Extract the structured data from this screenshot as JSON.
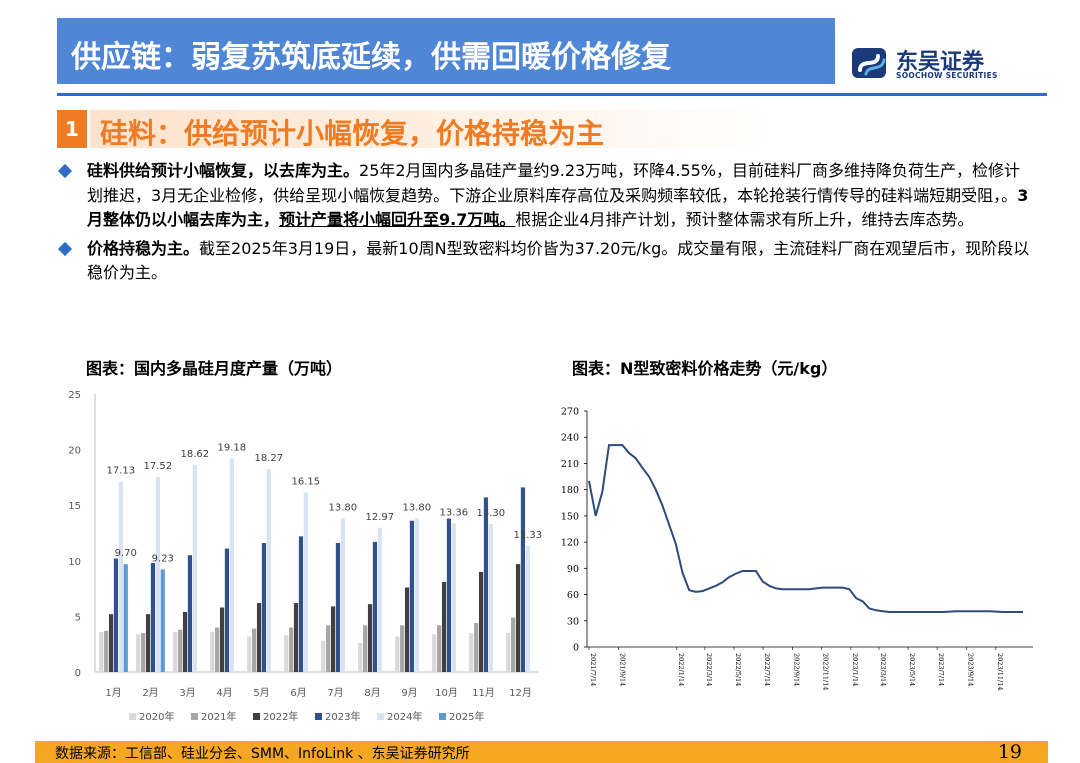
{
  "header": {
    "title": "供应链：弱复苏筑底延续，供需回暖价格修复",
    "logo_cn": "东吴证券",
    "logo_en": "SOOCHOW SECURITIES"
  },
  "section": {
    "number": "1",
    "title": "硅料：供给预计小幅恢复，价格持稳为主"
  },
  "bullets": {
    "b1_bold": "硅料供给预计小幅恢复，以去库为主。",
    "b1_text": "25年2月国内多晶硅产量约9.23万吨，环降4.55%，目前硅料厂商多维持降负荷生产，检修计划推迟，3月无企业检修，供给呈现小幅恢复趋势。下游企业原料库存高位及采购频率较低，本轮抢装行情传导的硅料端短期受阻，。",
    "b1_bold2": "3月整体仍以小幅去库为主，",
    "b1_underline": "预计产量将小幅回升至9.7万吨。",
    "b1_text2": "根据企业4月排产计划，预计整体需求有所上升，维持去库态势。",
    "b2_bold": "价格持稳为主。",
    "b2_text": "截至2025年3月19日，最新10周N型致密料均价皆为37.20元/kg。成交量有限，主流硅料厂商在观望后市，现阶段以稳价为主。"
  },
  "chart_titles": {
    "left": "图表：国内多晶硅月度产量（万吨）",
    "right": "图表：N型致密料价格走势（元/kg）"
  },
  "footer": {
    "source": "数据来源：工信部、硅业分会、SMM、InfoLink 、东吴证券研究所",
    "page": "19"
  },
  "chart_data": [
    {
      "type": "bar",
      "title": "图表：国内多晶硅月度产量（万吨）",
      "categories": [
        "1月",
        "2月",
        "3月",
        "4月",
        "5月",
        "6月",
        "7月",
        "8月",
        "9月",
        "10月",
        "11月",
        "12月"
      ],
      "ylim": [
        0,
        25
      ],
      "yticks": [
        0,
        5,
        10,
        15,
        20,
        25
      ],
      "legend_position": "bottom",
      "series": [
        {
          "name": "2020年",
          "color": "#d9d9d9",
          "values": [
            3.6,
            3.4,
            3.6,
            3.6,
            3.2,
            3.3,
            2.8,
            2.6,
            3.2,
            3.4,
            3.5,
            3.5
          ]
        },
        {
          "name": "2021年",
          "color": "#a6a6a6",
          "values": [
            3.7,
            3.5,
            3.8,
            4.0,
            3.9,
            4.0,
            4.2,
            4.2,
            4.2,
            4.2,
            4.4,
            4.9
          ]
        },
        {
          "name": "2022年",
          "color": "#404040",
          "values": [
            5.2,
            5.2,
            5.4,
            5.8,
            6.2,
            6.2,
            5.9,
            6.1,
            7.6,
            8.1,
            9.0,
            9.7
          ]
        },
        {
          "name": "2023年",
          "color": "#2f528f",
          "values": [
            10.2,
            9.8,
            10.5,
            11.1,
            11.6,
            12.2,
            11.6,
            11.7,
            13.6,
            13.8,
            15.7,
            16.6
          ]
        },
        {
          "name": "2024年",
          "color": "#dae3f3",
          "values": [
            17.13,
            17.52,
            18.62,
            19.18,
            18.27,
            16.15,
            13.8,
            12.97,
            13.8,
            13.36,
            13.3,
            11.33
          ]
        },
        {
          "name": "2025年",
          "color": "#5b9bd5",
          "values": [
            9.7,
            9.23,
            null,
            null,
            null,
            null,
            null,
            null,
            null,
            null,
            null,
            null
          ]
        }
      ],
      "data_labels": {
        "2024年": [
          "17.13",
          "17.52",
          "18.62",
          "19.18",
          "18.27",
          "16.15",
          "13.80",
          "12.97",
          "13.80",
          "13.36",
          "13.30",
          "11.33"
        ],
        "2025年": [
          "9.70",
          "9.23"
        ]
      }
    },
    {
      "type": "line",
      "title": "图表：N型致密料价格走势（元/kg）",
      "ylim": [
        0,
        270
      ],
      "yticks": [
        0,
        30,
        60,
        90,
        120,
        150,
        180,
        210,
        240,
        270
      ],
      "x_tick_labels": [
        "2021/7/14",
        "2021/9/14",
        "2022/1/14",
        "2022/3/14",
        "2022/5/14",
        "2022/7/14",
        "2022/9/14",
        "2022/11/14",
        "2023/1/14",
        "2023/3/14",
        "2023/5/14",
        "2023/7/14",
        "2023/9/14",
        "2023/11/14"
      ],
      "color": "#2f4b7c",
      "series": [
        {
          "x": [
            "2021/7/14",
            "2021/7/28",
            "2021/8/11",
            "2021/8/25",
            "2021/9/8",
            "2021/9/22",
            "2021/10/6",
            "2021/10/20",
            "2021/11/3",
            "2021/11/17",
            "2021/12/1",
            "2021/12/15",
            "2021/12/29",
            "2022/1/12",
            "2022/1/26",
            "2022/2/9",
            "2022/2/23",
            "2022/3/9",
            "2022/3/23",
            "2022/4/6",
            "2022/4/20",
            "2022/5/4",
            "2022/5/18",
            "2022/6/1",
            "2022/6/15",
            "2022/6/29",
            "2022/7/13",
            "2022/7/27",
            "2022/8/10",
            "2022/8/24",
            "2022/9/7",
            "2022/9/21",
            "2022/10/5",
            "2022/10/19",
            "2022/11/2",
            "2022/11/16",
            "2022/11/30",
            "2022/12/14",
            "2022/12/28",
            "2023/1/11",
            "2023/1/25",
            "2023/2/8",
            "2023/2/22",
            "2023/3/8",
            "2023/3/22",
            "2023/4/5",
            "2023/4/19",
            "2023/5/3",
            "2023/5/17",
            "2023/5/31",
            "2023/6/14",
            "2023/6/28",
            "2023/7/12",
            "2023/7/26",
            "2023/8/9",
            "2023/8/23",
            "2023/9/6",
            "2023/9/20",
            "2023/10/4",
            "2023/10/18",
            "2023/11/1",
            "2023/11/15",
            "2023/11/29",
            "2023/12/13",
            "2023/12/27",
            "2024/1/10"
          ],
          "values": [
            190,
            150,
            178,
            231,
            231,
            231,
            222,
            216,
            205,
            195,
            180,
            162,
            140,
            118,
            85,
            65,
            63,
            64,
            67,
            70,
            74,
            80,
            84,
            87,
            87,
            87,
            75,
            70,
            67,
            66,
            66,
            66,
            66,
            66,
            67,
            68,
            68,
            68,
            68,
            66,
            56,
            52,
            44,
            42,
            41,
            40,
            40,
            40,
            40,
            40,
            40,
            40,
            40,
            40,
            40.5,
            41,
            41,
            41,
            41,
            41,
            41,
            40.5,
            40,
            40,
            40,
            40
          ]
        }
      ]
    }
  ]
}
